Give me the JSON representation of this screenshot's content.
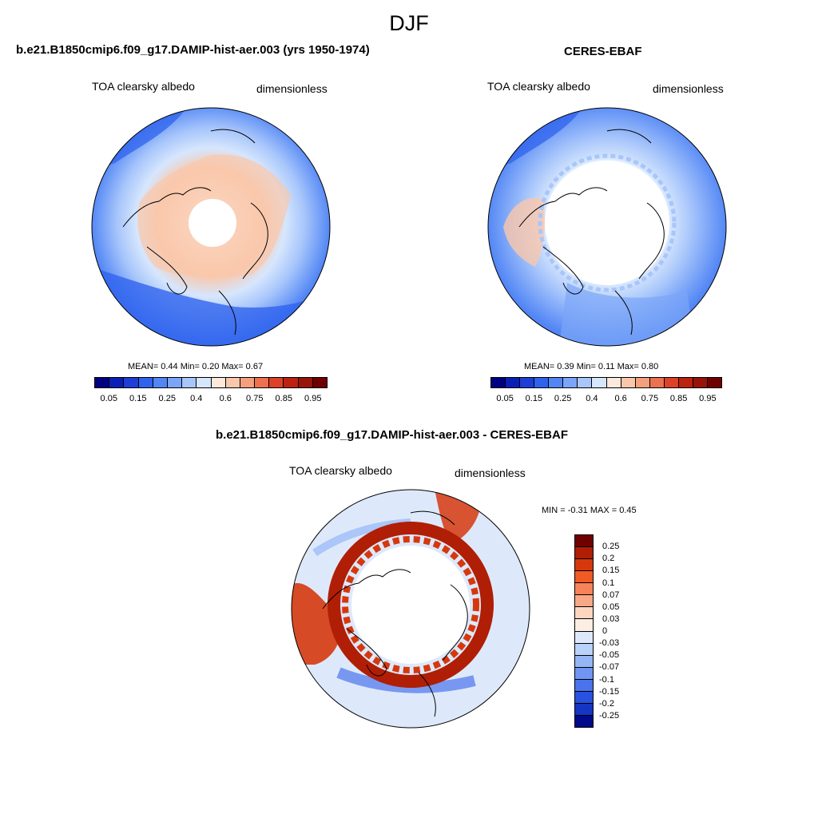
{
  "season": "DJF",
  "panels": [
    {
      "title": "b.e21.B1850cmip6.f09_g17.DAMIP-hist-aer.003 (yrs 1950-1974)",
      "variable": "TOA clearsky albedo",
      "units": "dimensionless",
      "stats": {
        "mean": "0.44",
        "min": "0.20",
        "max": "0.67"
      },
      "stats_text": "MEAN=   0.44   Min=    0.20   Max=    0.67"
    },
    {
      "title": "CERES-EBAF",
      "variable": "TOA clearsky albedo",
      "units": "dimensionless",
      "stats": {
        "mean": "0.39",
        "min": "0.11",
        "max": "0.80"
      },
      "stats_text": "MEAN=   0.39   Min=    0.11   Max=    0.80"
    }
  ],
  "diff_panel": {
    "title": "b.e21.B1850cmip6.f09_g17.DAMIP-hist-aer.003 - CERES-EBAF",
    "variable": "TOA clearsky albedo",
    "units": "dimensionless",
    "minmax_text": "MIN =   -0.31  MAX =    0.45"
  },
  "abs_colorbar": {
    "colors": [
      "#000080",
      "#0a1fb5",
      "#1d3fd6",
      "#2f63ee",
      "#5286f5",
      "#7ba5f8",
      "#a8c6fb",
      "#d6e6fd",
      "#fde9dc",
      "#fac7ab",
      "#f5a07d",
      "#ec7150",
      "#dd4128",
      "#bd2211",
      "#981408",
      "#700000"
    ],
    "tick_labels": [
      "0.05",
      "0.15",
      "0.25",
      "0.4",
      "0.6",
      "0.75",
      "0.85",
      "0.95"
    ]
  },
  "diff_colorbar": {
    "colors": [
      "#700000",
      "#b01e05",
      "#d6380e",
      "#f05a25",
      "#f6835a",
      "#f9a887",
      "#fdd6c0",
      "#fdeee4",
      "#dde9fb",
      "#b9d2fa",
      "#95b6f6",
      "#7095f2",
      "#4b73ed",
      "#2a52e0",
      "#1535c4",
      "#000a8a"
    ],
    "tick_labels": [
      "0.25",
      "0.2",
      "0.15",
      "0.1",
      "0.07",
      "0.05",
      "0.03",
      "0",
      "-0.03",
      "-0.05",
      "-0.07",
      "-0.1",
      "-0.15",
      "-0.2",
      "-0.25"
    ]
  }
}
